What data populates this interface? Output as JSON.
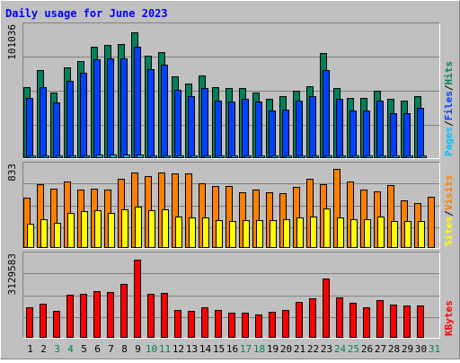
{
  "title": "Daily usage for June 2023",
  "colors": {
    "background": "#c0c0c0",
    "frame_dark": "#808080",
    "frame_light": "#ffffff",
    "title_text": "#0000ff",
    "grid": "#808080",
    "hits": "#00805c",
    "files": "#0040ff",
    "pages": "#00c0ff",
    "visits": "#ff8000",
    "sites": "#ffff00",
    "kbytes": "#ff0000",
    "weekend": "#00805c",
    "weekday": "#000000"
  },
  "chart_data": [
    {
      "type": "bar",
      "panel": "hits-files-pages",
      "categories": [
        "1",
        "2",
        "3",
        "4",
        "5",
        "6",
        "7",
        "8",
        "9",
        "10",
        "11",
        "12",
        "13",
        "14",
        "15",
        "16",
        "17",
        "18",
        "19",
        "20",
        "21",
        "22",
        "23",
        "24",
        "25",
        "26",
        "27",
        "28",
        "29",
        "30",
        "31"
      ],
      "weekend_days": [
        "3",
        "4",
        "10",
        "11",
        "17",
        "18",
        "24",
        "25",
        "31"
      ],
      "ymax_label": "101036",
      "ylim": [
        0,
        104500
      ],
      "series": [
        {
          "name": "Hits",
          "values": [
            55000,
            68000,
            51000,
            70000,
            75000,
            86000,
            87000,
            88000,
            97000,
            79000,
            82000,
            63000,
            58000,
            64000,
            55000,
            54000,
            54000,
            51000,
            46000,
            48000,
            52000,
            56000,
            81000,
            54000,
            47000,
            47000,
            52000,
            46000,
            45000,
            48000,
            0
          ]
        },
        {
          "name": "Files",
          "values": [
            47000,
            55000,
            43000,
            60000,
            66000,
            76000,
            77000,
            77000,
            86000,
            69000,
            72000,
            53000,
            48000,
            54000,
            45000,
            44000,
            46000,
            44000,
            37000,
            38000,
            45000,
            48000,
            68000,
            46000,
            37000,
            37000,
            45000,
            35000,
            35000,
            39000,
            0
          ]
        },
        {
          "name": "Pages",
          "values": [
            2500,
            2500,
            2500,
            3000,
            3000,
            3500,
            3500,
            3500,
            3500,
            3000,
            3000,
            2500,
            2500,
            2500,
            2500,
            2500,
            2500,
            2500,
            2500,
            2500,
            2500,
            2500,
            3000,
            2500,
            2500,
            2500,
            2500,
            2500,
            2500,
            2500,
            0
          ]
        }
      ],
      "right_legend": [
        "Pages",
        "/",
        "Files",
        "/",
        "Hits"
      ]
    },
    {
      "type": "bar",
      "panel": "visits-sites",
      "categories": [
        "1",
        "2",
        "3",
        "4",
        "5",
        "6",
        "7",
        "8",
        "9",
        "10",
        "11",
        "12",
        "13",
        "14",
        "15",
        "16",
        "17",
        "18",
        "19",
        "20",
        "21",
        "22",
        "23",
        "24",
        "25",
        "26",
        "27",
        "28",
        "29",
        "30",
        "31"
      ],
      "ymax_label": "833",
      "ylim": [
        0,
        906
      ],
      "series": [
        {
          "name": "Visits",
          "values": [
            530,
            670,
            630,
            700,
            620,
            630,
            620,
            730,
            790,
            760,
            790,
            780,
            780,
            680,
            650,
            650,
            590,
            620,
            590,
            580,
            640,
            730,
            670,
            830,
            700,
            620,
            600,
            660,
            500,
            480,
            540
          ]
        },
        {
          "name": "Sites",
          "values": [
            260,
            310,
            270,
            370,
            390,
            400,
            370,
            410,
            440,
            400,
            410,
            340,
            330,
            330,
            300,
            290,
            300,
            300,
            300,
            310,
            330,
            340,
            420,
            330,
            310,
            310,
            340,
            290,
            290,
            290,
            0
          ]
        }
      ],
      "right_legend": [
        "Sites",
        "/",
        "Visits"
      ]
    },
    {
      "type": "bar",
      "panel": "kbytes",
      "categories": [
        "1",
        "2",
        "3",
        "4",
        "5",
        "6",
        "7",
        "8",
        "9",
        "10",
        "11",
        "12",
        "13",
        "14",
        "15",
        "16",
        "17",
        "18",
        "19",
        "20",
        "21",
        "22",
        "23",
        "24",
        "25",
        "26",
        "27",
        "28",
        "29",
        "30",
        "31"
      ],
      "ymax_label": "3129583",
      "ylim": [
        0,
        3434000
      ],
      "series": [
        {
          "name": "KBytes",
          "values": [
            1230000,
            1380000,
            1080000,
            1750000,
            1760000,
            1890000,
            1830000,
            2150000,
            3129583,
            1770000,
            1790000,
            1150000,
            1080000,
            1230000,
            1140000,
            1040000,
            1040000,
            960000,
            1070000,
            1120000,
            1450000,
            1580000,
            2380000,
            1620000,
            1430000,
            1250000,
            1520000,
            1340000,
            1320000,
            1300000,
            0
          ]
        }
      ],
      "right_legend": [
        "KBytes"
      ]
    }
  ]
}
